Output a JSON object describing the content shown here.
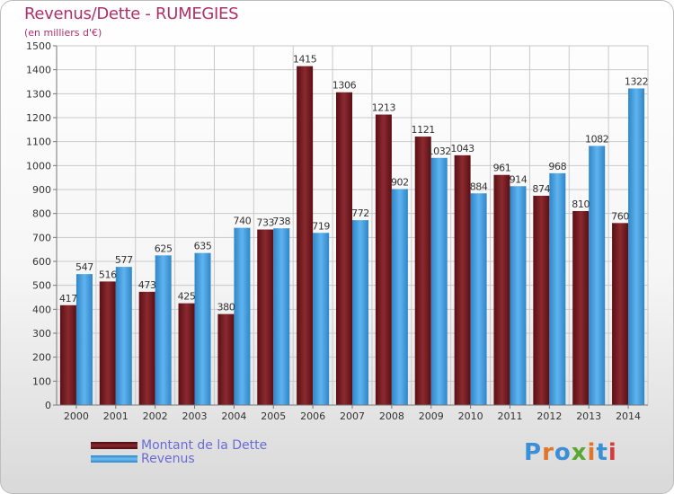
{
  "header": {
    "title": "Revenus/Dette - RUMEGIES",
    "subtitle": "(en milliers d'€)"
  },
  "logo": {
    "text": "Proxiti"
  },
  "colors": {
    "dette": "#7a1f25",
    "revenus": "#3f9de0",
    "grid": "#c9c9c9",
    "title": "#b0306a",
    "legend_text": "#6b6bd6"
  },
  "chart_data": {
    "type": "bar",
    "title": "Revenus/Dette - RUMEGIES",
    "ylabel": "(en milliers d'€)",
    "xlabel": "",
    "ylim": [
      0,
      1500
    ],
    "ytick_step": 100,
    "grid": true,
    "legend_position": "bottom-left",
    "categories": [
      "2000",
      "2001",
      "2002",
      "2003",
      "2004",
      "2005",
      "2006",
      "2007",
      "2008",
      "2009",
      "2010",
      "2011",
      "2012",
      "2013",
      "2014"
    ],
    "series": [
      {
        "name": "Montant de la Dette",
        "values": [
          417,
          516,
          473,
          425,
          380,
          733,
          1415,
          1306,
          1213,
          1121,
          1043,
          961,
          874,
          810,
          760
        ]
      },
      {
        "name": "Revenus",
        "values": [
          547,
          577,
          625,
          635,
          740,
          738,
          719,
          772,
          902,
          1032,
          884,
          914,
          968,
          1082,
          1322
        ]
      }
    ]
  }
}
